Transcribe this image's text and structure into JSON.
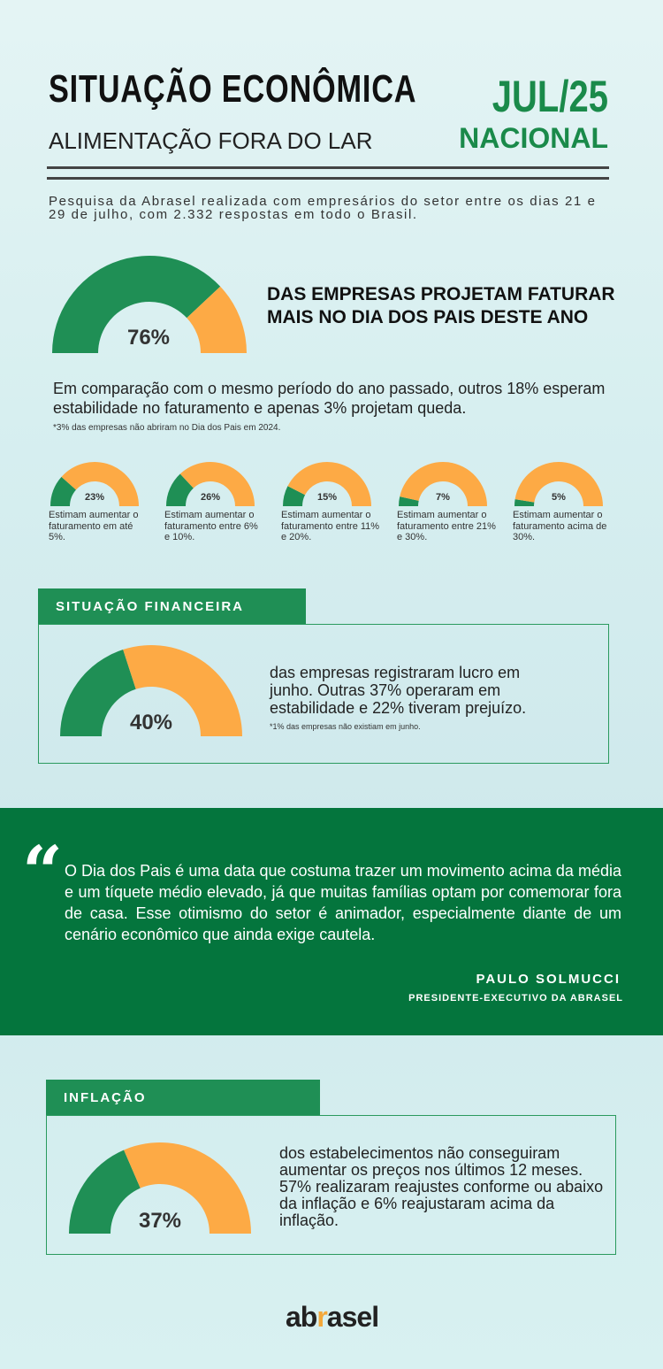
{
  "header": {
    "title": "SITUAÇÃO ECONÔMICA",
    "subtitle": "ALIMENTAÇÃO FORA DO LAR",
    "period": "JUL/25",
    "scope": "NACIONAL"
  },
  "intro": "Pesquisa da Abrasel realizada com empresários do setor entre os dias 21 e 29 de julho, com 2.332 respostas em todo o Brasil.",
  "colors": {
    "green": "#1f8f55",
    "orange": "#fdaa45",
    "dark_green": "#04753d"
  },
  "main_stat": {
    "headline": "DAS EMPRESAS PROJETAM FATURAR MAIS NO DIA DOS PAIS DESTE ANO",
    "description": "Em comparação com o mesmo período do ano passado, outros 18% esperam estabilidade no faturamento e apenas 3% projetam queda.",
    "footnote": "*3% das empresas não abriram no Dia dos Pais em 2024."
  },
  "financeira": {
    "section_title": "SITUAÇÃO FINANCEIRA",
    "text": "das empresas registraram lucro em junho. Outras 37% operaram em estabilidade e 22% tiveram prejuízo.",
    "footnote": "*1% das empresas não existiam em junho."
  },
  "quote": {
    "mark": "“",
    "text": "O Dia dos Pais é uma data que costuma trazer um movimento acima da média e um tíquete médio elevado, já que muitas famílias optam por comemorar fora de casa. Esse otimismo do setor é animador, especialmente diante de um cenário econômico que ainda exige cautela.",
    "author": "PAULO SOLMUCCI",
    "role": "PRESIDENTE-EXECUTIVO DA ABRASEL"
  },
  "inflacao": {
    "section_title": "INFLAÇÃO",
    "text": "dos estabelecimentos não conseguiram aumentar os preços nos últimos 12 meses. 57% realizaram reajustes conforme ou abaixo da inflação e 6% reajustaram acima da inflação."
  },
  "logo": {
    "part1": "ab",
    "part2": "r",
    "part3": "asel"
  },
  "chart_data": [
    {
      "type": "pie",
      "values": [
        76
      ],
      "labels": [
        "76%"
      ]
    },
    {
      "type": "pie",
      "categories": [
        "Estimam aumentar o faturamento em até 5%.",
        "Estimam aumentar o faturamento entre 6% e 10%.",
        "Estimam aumentar o faturamento entre 11% e 20%.",
        "Estimam aumentar o faturamento entre 21% e 30%.",
        "Estimam aumentar o faturamento acima de 30%."
      ],
      "values": [
        23,
        26,
        15,
        7,
        5
      ],
      "labels": [
        "23%",
        "26%",
        "15%",
        "7%",
        "5%"
      ]
    },
    {
      "type": "pie",
      "values": [
        40
      ],
      "labels": [
        "40%"
      ]
    },
    {
      "type": "pie",
      "values": [
        37
      ],
      "labels": [
        "37%"
      ]
    }
  ]
}
